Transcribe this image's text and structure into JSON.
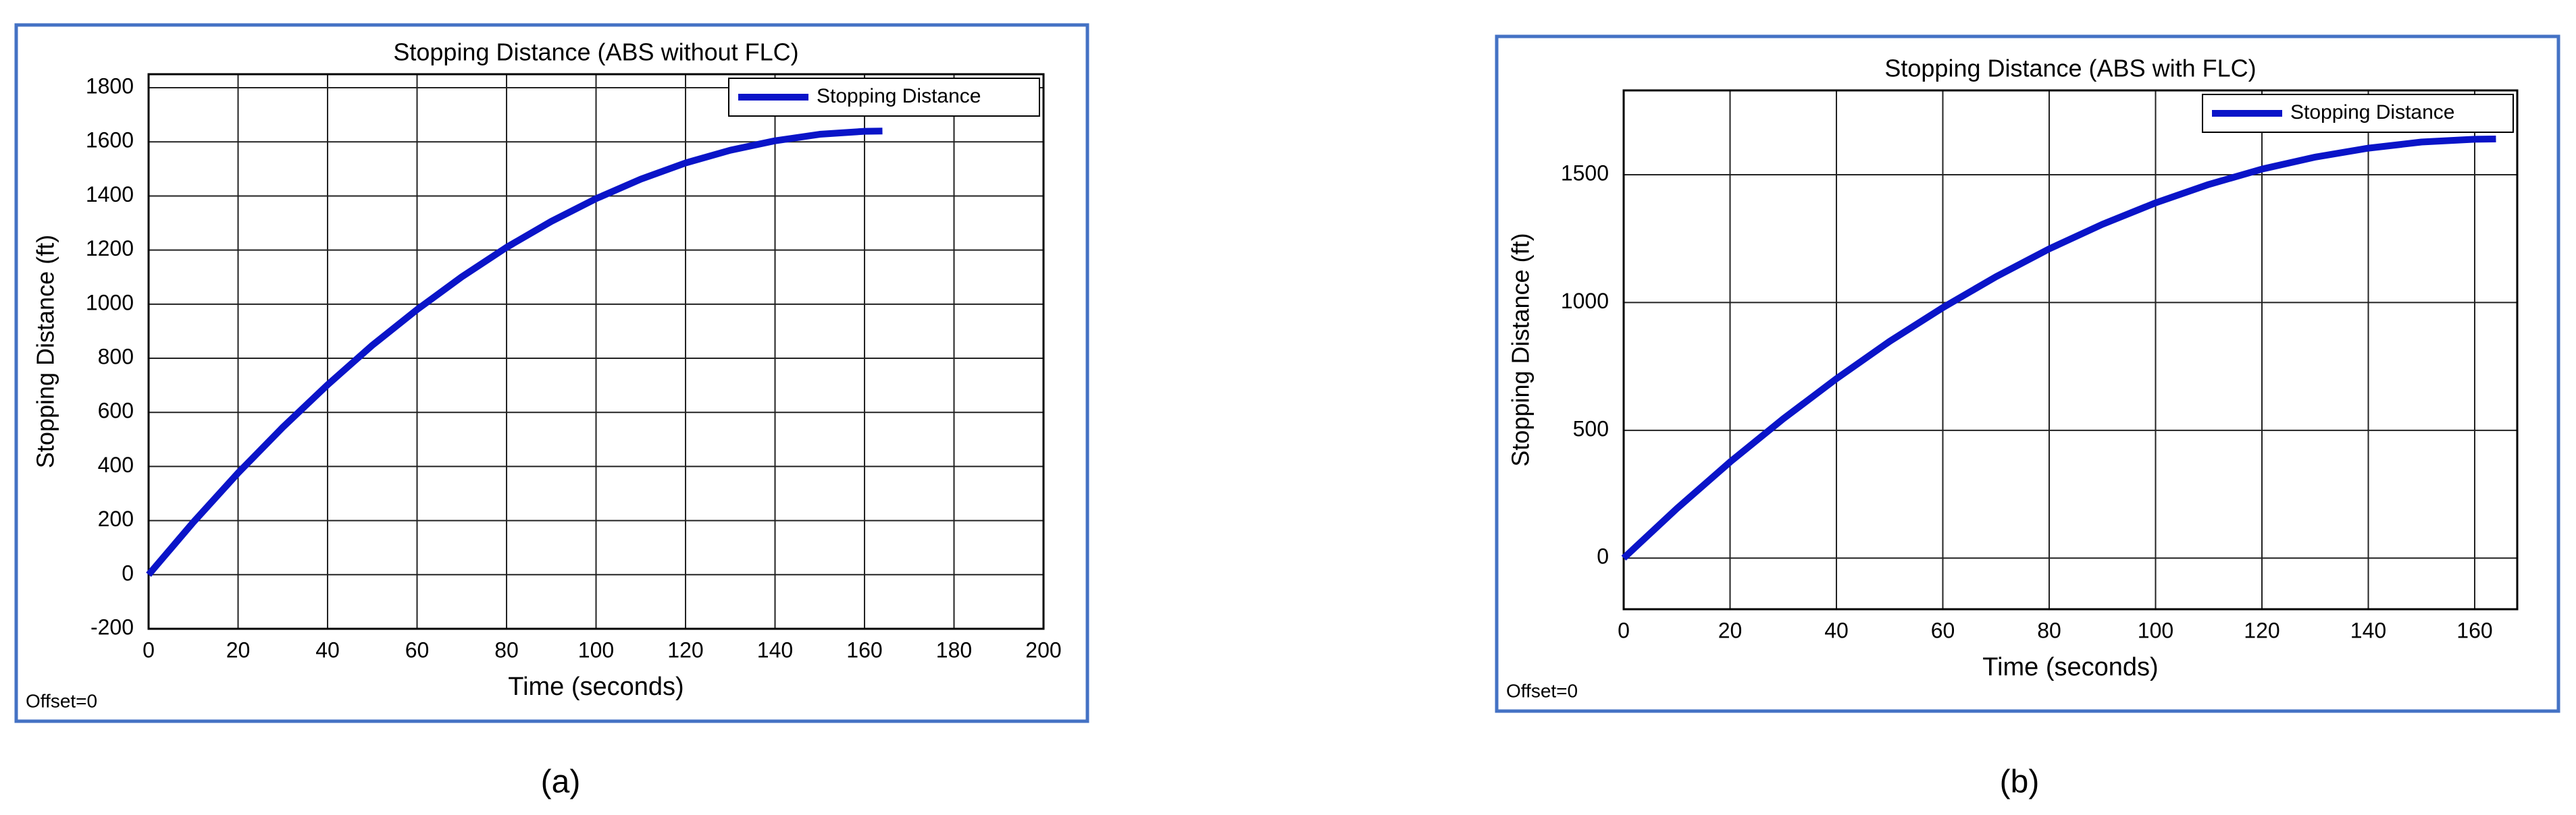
{
  "chart_data": [
    {
      "type": "line",
      "title": "Stopping Distance (ABS without FLC)",
      "x_label": "Time (seconds)",
      "y_label": "Stopping Distance (ft)",
      "annotation": "Offset=0",
      "caption": "(a)",
      "x": [
        0,
        10,
        20,
        30,
        40,
        50,
        60,
        70,
        80,
        90,
        100,
        110,
        120,
        130,
        140,
        150,
        160,
        164
      ],
      "series": [
        {
          "name": "Stopping Distance",
          "color": "#0a14c8",
          "values": [
            0,
            194,
            376,
            545,
            702,
            848,
            980,
            1101,
            1210,
            1306,
            1390,
            1462,
            1522,
            1569,
            1604,
            1628,
            1639,
            1640
          ]
        }
      ],
      "xlim": [
        0,
        200
      ],
      "xticks": [
        0,
        20,
        40,
        60,
        80,
        100,
        120,
        140,
        160,
        180,
        200
      ],
      "ylim": [
        -200,
        1850
      ],
      "yticks": [
        -200,
        0,
        200,
        400,
        600,
        800,
        1000,
        1200,
        1400,
        1600,
        1800
      ],
      "grid": true,
      "legend": "upper right"
    },
    {
      "type": "line",
      "title": "Stopping Distance (ABS with FLC)",
      "x_label": "Time (seconds)",
      "y_label": "Stopping Distance (ft)",
      "annotation": "Offset=0",
      "caption": "(b)",
      "x": [
        0,
        10,
        20,
        30,
        40,
        50,
        60,
        70,
        80,
        90,
        100,
        110,
        120,
        130,
        140,
        150,
        160,
        164
      ],
      "series": [
        {
          "name": "Stopping Distance",
          "color": "#0a14c8",
          "values": [
            0,
            194,
            376,
            545,
            702,
            848,
            980,
            1101,
            1210,
            1306,
            1390,
            1462,
            1522,
            1569,
            1604,
            1628,
            1639,
            1640
          ]
        }
      ],
      "xlim": [
        0,
        168
      ],
      "xticks": [
        0,
        20,
        40,
        60,
        80,
        100,
        120,
        140,
        160
      ],
      "ylim": [
        -200,
        1830
      ],
      "yticks": [
        0,
        500,
        1000,
        1500
      ],
      "grid": true,
      "legend": "upper right"
    }
  ]
}
